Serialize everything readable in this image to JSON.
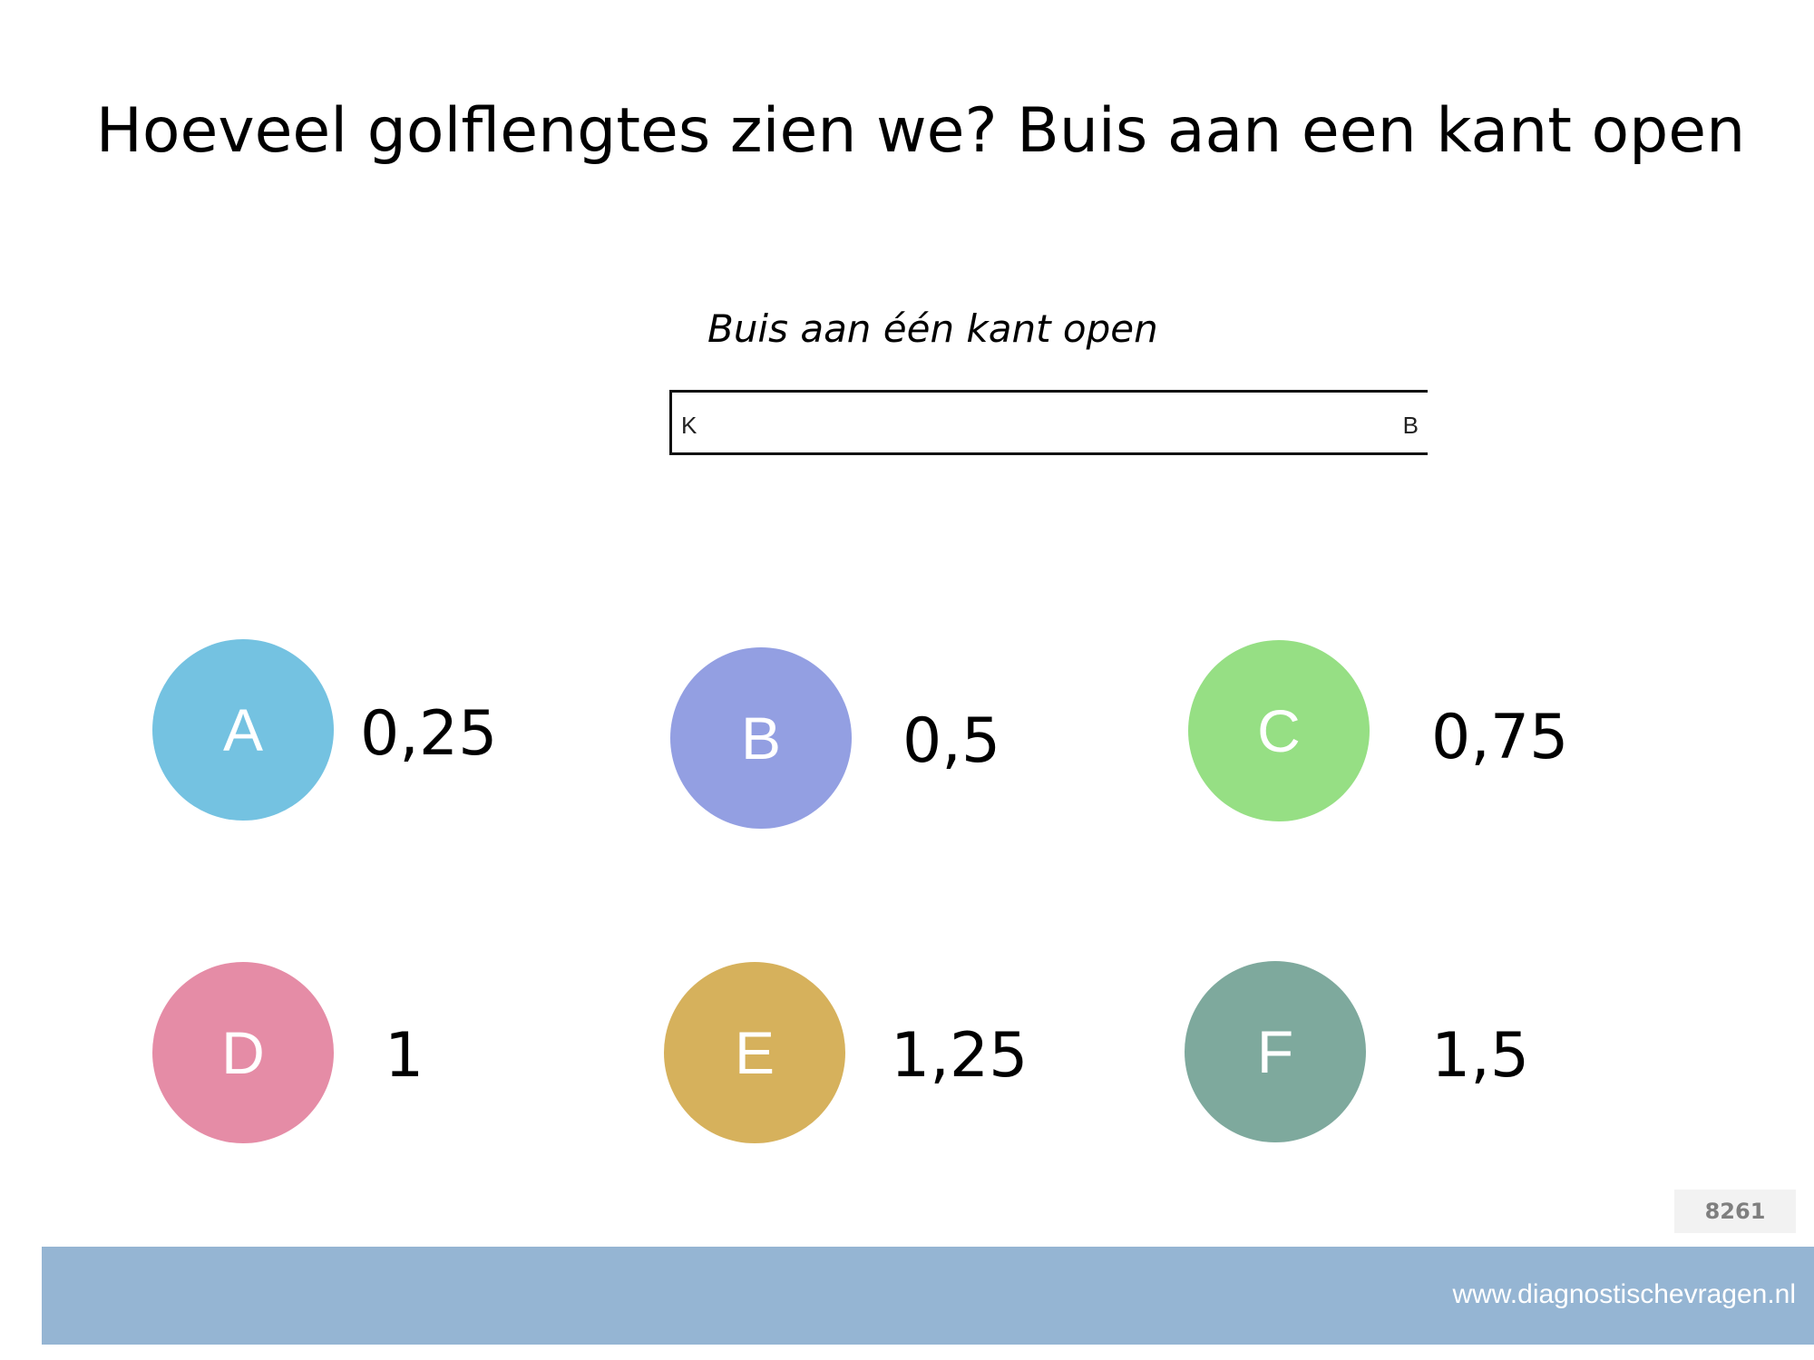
{
  "title": "Hoeveel golflengtes zien we? Buis aan een kant open",
  "diagram": {
    "caption": "Buis aan één kant open",
    "left_label": "K",
    "right_label": "B"
  },
  "options": [
    {
      "letter": "A",
      "value": "0,25",
      "color": "#74c2e1"
    },
    {
      "letter": "B",
      "value": "0,5",
      "color": "#939fe2"
    },
    {
      "letter": "C",
      "value": "0,75",
      "color": "#96df84"
    },
    {
      "letter": "D",
      "value": "1",
      "color": "#e58ca6"
    },
    {
      "letter": "E",
      "value": "1,25",
      "color": "#d6b15c"
    },
    {
      "letter": "F",
      "value": "1,5",
      "color": "#7ea99d"
    }
  ],
  "question_id": "8261",
  "footer": {
    "url": "www.diagnostischevragen.nl"
  }
}
